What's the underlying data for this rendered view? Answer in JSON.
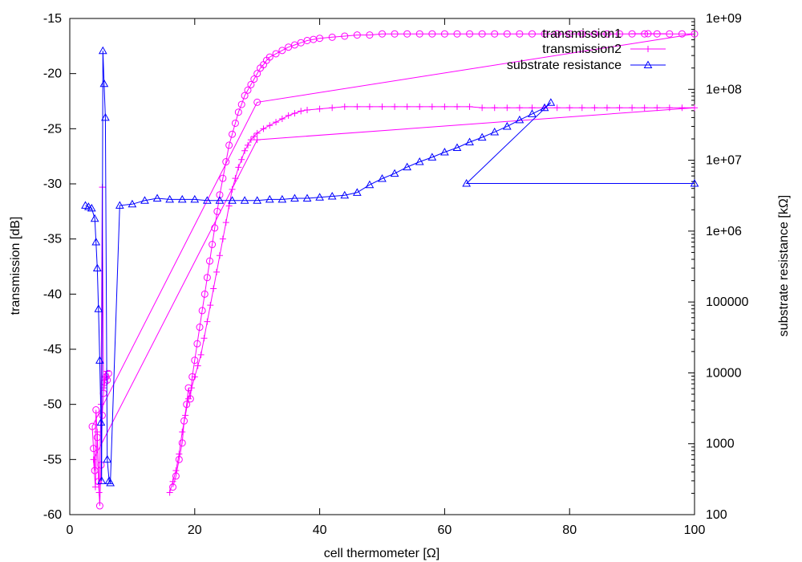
{
  "chart_data": {
    "type": "scatter",
    "xlabel": "cell thermometer [Ω]",
    "ylabel": "transmission [dB]",
    "y2label": "substrate resistance [kΩ]",
    "xlim": [
      0,
      100
    ],
    "ylim": [
      -60,
      -15
    ],
    "y2lim": [
      100,
      1000000000
    ],
    "y2scale": "log",
    "grid": false,
    "legend_position": "top-right",
    "xticks": [
      "0",
      "20",
      "40",
      "60",
      "80",
      "100"
    ],
    "yticks": [
      "-60",
      "-55",
      "-50",
      "-45",
      "-40",
      "-35",
      "-30",
      "-25",
      "-20",
      "-15"
    ],
    "y2ticks": [
      "100",
      "1000",
      "10000",
      "100000",
      "1e+06",
      "1e+07",
      "1e+08",
      "1e+09"
    ],
    "series": [
      {
        "name": "transmission1",
        "axis": "left",
        "color": "#ff00ff",
        "marker": "circle",
        "points": [
          [
            16.5,
            -57.5
          ],
          [
            17.0,
            -56.5
          ],
          [
            17.5,
            -55.0
          ],
          [
            18.0,
            -53.5
          ],
          [
            18.3,
            -51.5
          ],
          [
            18.7,
            -50.0
          ],
          [
            19.0,
            -48.5
          ],
          [
            19.3,
            -49.5
          ],
          [
            19.6,
            -47.5
          ],
          [
            20.0,
            -46.0
          ],
          [
            20.4,
            -44.5
          ],
          [
            20.8,
            -43.0
          ],
          [
            21.2,
            -41.5
          ],
          [
            21.6,
            -40.0
          ],
          [
            22.0,
            -38.5
          ],
          [
            22.4,
            -37.0
          ],
          [
            22.8,
            -35.5
          ],
          [
            23.2,
            -34.0
          ],
          [
            23.6,
            -32.5
          ],
          [
            24.0,
            -31.0
          ],
          [
            24.5,
            -29.5
          ],
          [
            25.0,
            -28.0
          ],
          [
            25.5,
            -26.5
          ],
          [
            26.0,
            -25.5
          ],
          [
            26.5,
            -24.5
          ],
          [
            27.0,
            -23.5
          ],
          [
            27.5,
            -22.8
          ],
          [
            28.0,
            -22.0
          ],
          [
            28.5,
            -21.5
          ],
          [
            29.0,
            -21.0
          ],
          [
            29.5,
            -20.5
          ],
          [
            30.0,
            -20.0
          ],
          [
            30.5,
            -19.5
          ],
          [
            31.0,
            -19.2
          ],
          [
            31.5,
            -18.8
          ],
          [
            32.0,
            -18.5
          ],
          [
            33.0,
            -18.2
          ],
          [
            34.0,
            -17.9
          ],
          [
            35.0,
            -17.6
          ],
          [
            36.0,
            -17.4
          ],
          [
            37.0,
            -17.2
          ],
          [
            38.0,
            -17.0
          ],
          [
            39.0,
            -16.9
          ],
          [
            40.0,
            -16.8
          ],
          [
            42.0,
            -16.7
          ],
          [
            44.0,
            -16.6
          ],
          [
            46.0,
            -16.5
          ],
          [
            48.0,
            -16.5
          ],
          [
            50.0,
            -16.4
          ],
          [
            52.0,
            -16.4
          ],
          [
            54.0,
            -16.4
          ],
          [
            56.0,
            -16.4
          ],
          [
            58.0,
            -16.4
          ],
          [
            60.0,
            -16.4
          ],
          [
            62.0,
            -16.4
          ],
          [
            64.0,
            -16.4
          ],
          [
            66.0,
            -16.4
          ],
          [
            68.0,
            -16.4
          ],
          [
            70.0,
            -16.4
          ],
          [
            72.0,
            -16.4
          ],
          [
            74.0,
            -16.4
          ],
          [
            76.0,
            -16.4
          ],
          [
            78.0,
            -16.4
          ],
          [
            80.0,
            -16.4
          ],
          [
            82.0,
            -16.4
          ],
          [
            84.0,
            -16.4
          ],
          [
            86.0,
            -16.4
          ],
          [
            88.0,
            -16.4
          ],
          [
            90.0,
            -16.4
          ],
          [
            92.0,
            -16.4
          ],
          [
            94.0,
            -16.4
          ],
          [
            96.0,
            -16.4
          ],
          [
            98.0,
            -16.4
          ],
          [
            100.0,
            -16.4
          ],
          [
            30.0,
            -22.6
          ],
          [
            3.6,
            -52.0
          ],
          [
            3.8,
            -54.0
          ],
          [
            4.0,
            -56.0
          ],
          [
            4.2,
            -50.5
          ],
          [
            4.4,
            -53.0
          ],
          [
            4.6,
            -57.0
          ],
          [
            4.8,
            -59.2
          ],
          [
            5.0,
            -55.5
          ],
          [
            5.2,
            -51.0
          ],
          [
            5.4,
            -49.0
          ],
          [
            5.6,
            -48.0
          ],
          [
            5.8,
            -47.5
          ],
          [
            6.0,
            -47.8
          ],
          [
            6.2,
            -47.2
          ]
        ]
      },
      {
        "name": "transmission2",
        "axis": "left",
        "color": "#ff00ff",
        "marker": "plus",
        "points": [
          [
            16.0,
            -58.0
          ],
          [
            16.5,
            -57.0
          ],
          [
            17.0,
            -56.0
          ],
          [
            17.5,
            -54.5
          ],
          [
            18.0,
            -52.5
          ],
          [
            18.5,
            -51.0
          ],
          [
            19.0,
            -49.5
          ],
          [
            19.5,
            -48.5
          ],
          [
            20.0,
            -47.5
          ],
          [
            20.5,
            -46.5
          ],
          [
            21.0,
            -45.5
          ],
          [
            21.5,
            -44.0
          ],
          [
            22.0,
            -42.5
          ],
          [
            22.5,
            -41.0
          ],
          [
            23.0,
            -39.5
          ],
          [
            23.5,
            -38.0
          ],
          [
            24.0,
            -36.5
          ],
          [
            24.5,
            -35.0
          ],
          [
            25.0,
            -33.5
          ],
          [
            25.5,
            -32.0
          ],
          [
            26.0,
            -30.5
          ],
          [
            26.5,
            -29.5
          ],
          [
            27.0,
            -28.5
          ],
          [
            27.5,
            -27.8
          ],
          [
            28.0,
            -27.0
          ],
          [
            28.5,
            -26.5
          ],
          [
            29.0,
            -26.0
          ],
          [
            29.5,
            -25.7
          ],
          [
            30.0,
            -25.4
          ],
          [
            31.0,
            -25.0
          ],
          [
            32.0,
            -24.7
          ],
          [
            33.0,
            -24.4
          ],
          [
            34.0,
            -24.1
          ],
          [
            35.0,
            -23.8
          ],
          [
            36.0,
            -23.6
          ],
          [
            37.0,
            -23.4
          ],
          [
            38.0,
            -23.3
          ],
          [
            40.0,
            -23.2
          ],
          [
            42.0,
            -23.1
          ],
          [
            44.0,
            -23.0
          ],
          [
            46.0,
            -23.0
          ],
          [
            48.0,
            -23.0
          ],
          [
            50.0,
            -23.0
          ],
          [
            52.0,
            -23.0
          ],
          [
            54.0,
            -23.0
          ],
          [
            56.0,
            -23.0
          ],
          [
            58.0,
            -23.0
          ],
          [
            60.0,
            -23.0
          ],
          [
            62.0,
            -23.0
          ],
          [
            64.0,
            -23.0
          ],
          [
            66.0,
            -23.1
          ],
          [
            68.0,
            -23.1
          ],
          [
            70.0,
            -23.1
          ],
          [
            72.0,
            -23.1
          ],
          [
            74.0,
            -23.1
          ],
          [
            76.0,
            -23.1
          ],
          [
            78.0,
            -23.1
          ],
          [
            80.0,
            -23.1
          ],
          [
            82.0,
            -23.1
          ],
          [
            84.0,
            -23.1
          ],
          [
            86.0,
            -23.1
          ],
          [
            88.0,
            -23.1
          ],
          [
            90.0,
            -23.1
          ],
          [
            92.0,
            -23.1
          ],
          [
            94.0,
            -23.1
          ],
          [
            96.0,
            -23.1
          ],
          [
            98.0,
            -23.1
          ],
          [
            100.0,
            -23.1
          ],
          [
            30.0,
            -26.0
          ],
          [
            3.8,
            -55.0
          ],
          [
            4.1,
            -57.5
          ],
          [
            4.4,
            -52.5
          ],
          [
            4.7,
            -58.0
          ],
          [
            5.0,
            -50.0
          ],
          [
            5.2,
            -30.3
          ],
          [
            5.4,
            -48.5
          ],
          [
            5.6,
            -47.5
          ],
          [
            5.9,
            -47.0
          ]
        ]
      },
      {
        "name": "substrate resistance",
        "axis": "right",
        "color": "#0000ff",
        "marker": "triangle",
        "points": [
          [
            2.5,
            2300000
          ],
          [
            3.0,
            2200000
          ],
          [
            3.5,
            2100000
          ],
          [
            4.0,
            1500000
          ],
          [
            4.2,
            700000
          ],
          [
            4.4,
            300000
          ],
          [
            4.6,
            80000
          ],
          [
            4.8,
            15000
          ],
          [
            5.0,
            2000
          ],
          [
            5.1,
            300
          ],
          [
            5.3,
            350000000
          ],
          [
            5.5,
            120000000
          ],
          [
            5.7,
            40000000
          ],
          [
            6.0,
            600
          ],
          [
            6.3,
            300
          ],
          [
            6.5,
            280
          ],
          [
            8.0,
            2300000
          ],
          [
            10.0,
            2400000
          ],
          [
            12.0,
            2700000
          ],
          [
            14.0,
            2900000
          ],
          [
            16.0,
            2800000
          ],
          [
            18.0,
            2800000
          ],
          [
            20.0,
            2800000
          ],
          [
            22.0,
            2700000
          ],
          [
            24.0,
            2700000
          ],
          [
            26.0,
            2700000
          ],
          [
            28.0,
            2700000
          ],
          [
            30.0,
            2700000
          ],
          [
            32.0,
            2800000
          ],
          [
            34.0,
            2800000
          ],
          [
            36.0,
            2900000
          ],
          [
            38.0,
            2900000
          ],
          [
            40.0,
            3000000
          ],
          [
            42.0,
            3100000
          ],
          [
            44.0,
            3200000
          ],
          [
            46.0,
            3500000
          ],
          [
            48.0,
            4500000
          ],
          [
            50.0,
            5500000
          ],
          [
            52.0,
            6500000
          ],
          [
            54.0,
            8000000
          ],
          [
            56.0,
            9500000
          ],
          [
            58.0,
            11000000
          ],
          [
            60.0,
            13000000
          ],
          [
            62.0,
            15000000
          ],
          [
            64.0,
            18000000
          ],
          [
            66.0,
            21000000
          ],
          [
            68.0,
            25000000
          ],
          [
            70.0,
            30000000
          ],
          [
            72.0,
            37000000
          ],
          [
            74.0,
            45000000
          ],
          [
            76.0,
            55000000
          ],
          [
            77.0,
            65000000
          ],
          [
            63.5,
            4700000
          ],
          [
            100.0,
            4700000
          ]
        ]
      }
    ]
  }
}
